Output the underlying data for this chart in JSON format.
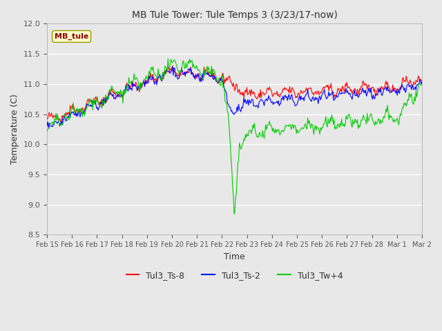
{
  "title": "MB Tule Tower: Tule Temps 3 (3/23/17-now)",
  "xlabel": "Time",
  "ylabel": "Temperature (C)",
  "ylim": [
    8.5,
    12.0
  ],
  "bg_color": "#e8e8e8",
  "legend_label": "MB_tule",
  "series_labels": [
    "Tul3_Ts-8",
    "Tul3_Ts-2",
    "Tul3_Tw+4"
  ],
  "series_colors": [
    "red",
    "blue",
    "#00cc00"
  ],
  "xtick_labels": [
    "Feb 15",
    "Feb 16",
    "Feb 17",
    "Feb 18",
    "Feb 19",
    "Feb 20",
    "Feb 21",
    "Feb 22",
    "Feb 23",
    "Feb 24",
    "Feb 25",
    "Feb 26",
    "Feb 27",
    "Feb 28",
    "Mar 1",
    "Mar 2"
  ],
  "ytick_values": [
    8.5,
    9.0,
    9.5,
    10.0,
    10.5,
    11.0,
    11.5,
    12.0
  ],
  "num_points": 500
}
